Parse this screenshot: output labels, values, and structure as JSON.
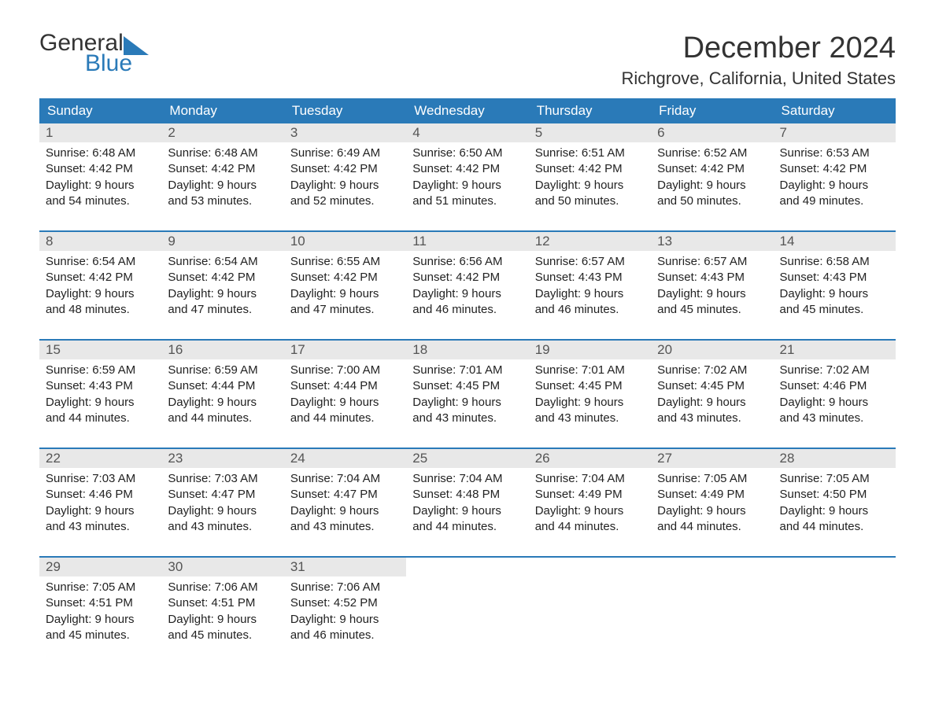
{
  "logo": {
    "general": "General",
    "blue": "Blue",
    "icon_color": "#2a7ab8"
  },
  "title": "December 2024",
  "location": "Richgrove, California, United States",
  "colors": {
    "header_bg": "#2a7ab8",
    "header_text": "#ffffff",
    "daynum_bg": "#e8e8e8",
    "daynum_text": "#555555",
    "body_text": "#222222",
    "border": "#2a7ab8"
  },
  "day_names": [
    "Sunday",
    "Monday",
    "Tuesday",
    "Wednesday",
    "Thursday",
    "Friday",
    "Saturday"
  ],
  "weeks": [
    [
      {
        "num": "1",
        "sunrise": "Sunrise: 6:48 AM",
        "sunset": "Sunset: 4:42 PM",
        "day1": "Daylight: 9 hours",
        "day2": "and 54 minutes."
      },
      {
        "num": "2",
        "sunrise": "Sunrise: 6:48 AM",
        "sunset": "Sunset: 4:42 PM",
        "day1": "Daylight: 9 hours",
        "day2": "and 53 minutes."
      },
      {
        "num": "3",
        "sunrise": "Sunrise: 6:49 AM",
        "sunset": "Sunset: 4:42 PM",
        "day1": "Daylight: 9 hours",
        "day2": "and 52 minutes."
      },
      {
        "num": "4",
        "sunrise": "Sunrise: 6:50 AM",
        "sunset": "Sunset: 4:42 PM",
        "day1": "Daylight: 9 hours",
        "day2": "and 51 minutes."
      },
      {
        "num": "5",
        "sunrise": "Sunrise: 6:51 AM",
        "sunset": "Sunset: 4:42 PM",
        "day1": "Daylight: 9 hours",
        "day2": "and 50 minutes."
      },
      {
        "num": "6",
        "sunrise": "Sunrise: 6:52 AM",
        "sunset": "Sunset: 4:42 PM",
        "day1": "Daylight: 9 hours",
        "day2": "and 50 minutes."
      },
      {
        "num": "7",
        "sunrise": "Sunrise: 6:53 AM",
        "sunset": "Sunset: 4:42 PM",
        "day1": "Daylight: 9 hours",
        "day2": "and 49 minutes."
      }
    ],
    [
      {
        "num": "8",
        "sunrise": "Sunrise: 6:54 AM",
        "sunset": "Sunset: 4:42 PM",
        "day1": "Daylight: 9 hours",
        "day2": "and 48 minutes."
      },
      {
        "num": "9",
        "sunrise": "Sunrise: 6:54 AM",
        "sunset": "Sunset: 4:42 PM",
        "day1": "Daylight: 9 hours",
        "day2": "and 47 minutes."
      },
      {
        "num": "10",
        "sunrise": "Sunrise: 6:55 AM",
        "sunset": "Sunset: 4:42 PM",
        "day1": "Daylight: 9 hours",
        "day2": "and 47 minutes."
      },
      {
        "num": "11",
        "sunrise": "Sunrise: 6:56 AM",
        "sunset": "Sunset: 4:42 PM",
        "day1": "Daylight: 9 hours",
        "day2": "and 46 minutes."
      },
      {
        "num": "12",
        "sunrise": "Sunrise: 6:57 AM",
        "sunset": "Sunset: 4:43 PM",
        "day1": "Daylight: 9 hours",
        "day2": "and 46 minutes."
      },
      {
        "num": "13",
        "sunrise": "Sunrise: 6:57 AM",
        "sunset": "Sunset: 4:43 PM",
        "day1": "Daylight: 9 hours",
        "day2": "and 45 minutes."
      },
      {
        "num": "14",
        "sunrise": "Sunrise: 6:58 AM",
        "sunset": "Sunset: 4:43 PM",
        "day1": "Daylight: 9 hours",
        "day2": "and 45 minutes."
      }
    ],
    [
      {
        "num": "15",
        "sunrise": "Sunrise: 6:59 AM",
        "sunset": "Sunset: 4:43 PM",
        "day1": "Daylight: 9 hours",
        "day2": "and 44 minutes."
      },
      {
        "num": "16",
        "sunrise": "Sunrise: 6:59 AM",
        "sunset": "Sunset: 4:44 PM",
        "day1": "Daylight: 9 hours",
        "day2": "and 44 minutes."
      },
      {
        "num": "17",
        "sunrise": "Sunrise: 7:00 AM",
        "sunset": "Sunset: 4:44 PM",
        "day1": "Daylight: 9 hours",
        "day2": "and 44 minutes."
      },
      {
        "num": "18",
        "sunrise": "Sunrise: 7:01 AM",
        "sunset": "Sunset: 4:45 PM",
        "day1": "Daylight: 9 hours",
        "day2": "and 43 minutes."
      },
      {
        "num": "19",
        "sunrise": "Sunrise: 7:01 AM",
        "sunset": "Sunset: 4:45 PM",
        "day1": "Daylight: 9 hours",
        "day2": "and 43 minutes."
      },
      {
        "num": "20",
        "sunrise": "Sunrise: 7:02 AM",
        "sunset": "Sunset: 4:45 PM",
        "day1": "Daylight: 9 hours",
        "day2": "and 43 minutes."
      },
      {
        "num": "21",
        "sunrise": "Sunrise: 7:02 AM",
        "sunset": "Sunset: 4:46 PM",
        "day1": "Daylight: 9 hours",
        "day2": "and 43 minutes."
      }
    ],
    [
      {
        "num": "22",
        "sunrise": "Sunrise: 7:03 AM",
        "sunset": "Sunset: 4:46 PM",
        "day1": "Daylight: 9 hours",
        "day2": "and 43 minutes."
      },
      {
        "num": "23",
        "sunrise": "Sunrise: 7:03 AM",
        "sunset": "Sunset: 4:47 PM",
        "day1": "Daylight: 9 hours",
        "day2": "and 43 minutes."
      },
      {
        "num": "24",
        "sunrise": "Sunrise: 7:04 AM",
        "sunset": "Sunset: 4:47 PM",
        "day1": "Daylight: 9 hours",
        "day2": "and 43 minutes."
      },
      {
        "num": "25",
        "sunrise": "Sunrise: 7:04 AM",
        "sunset": "Sunset: 4:48 PM",
        "day1": "Daylight: 9 hours",
        "day2": "and 44 minutes."
      },
      {
        "num": "26",
        "sunrise": "Sunrise: 7:04 AM",
        "sunset": "Sunset: 4:49 PM",
        "day1": "Daylight: 9 hours",
        "day2": "and 44 minutes."
      },
      {
        "num": "27",
        "sunrise": "Sunrise: 7:05 AM",
        "sunset": "Sunset: 4:49 PM",
        "day1": "Daylight: 9 hours",
        "day2": "and 44 minutes."
      },
      {
        "num": "28",
        "sunrise": "Sunrise: 7:05 AM",
        "sunset": "Sunset: 4:50 PM",
        "day1": "Daylight: 9 hours",
        "day2": "and 44 minutes."
      }
    ],
    [
      {
        "num": "29",
        "sunrise": "Sunrise: 7:05 AM",
        "sunset": "Sunset: 4:51 PM",
        "day1": "Daylight: 9 hours",
        "day2": "and 45 minutes."
      },
      {
        "num": "30",
        "sunrise": "Sunrise: 7:06 AM",
        "sunset": "Sunset: 4:51 PM",
        "day1": "Daylight: 9 hours",
        "day2": "and 45 minutes."
      },
      {
        "num": "31",
        "sunrise": "Sunrise: 7:06 AM",
        "sunset": "Sunset: 4:52 PM",
        "day1": "Daylight: 9 hours",
        "day2": "and 46 minutes."
      },
      {
        "empty": true
      },
      {
        "empty": true
      },
      {
        "empty": true
      },
      {
        "empty": true
      }
    ]
  ]
}
